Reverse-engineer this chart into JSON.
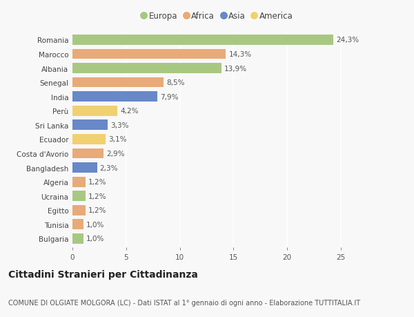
{
  "countries": [
    "Romania",
    "Marocco",
    "Albania",
    "Senegal",
    "India",
    "Perù",
    "Sri Lanka",
    "Ecuador",
    "Costa d'Avorio",
    "Bangladesh",
    "Algeria",
    "Ucraina",
    "Egitto",
    "Tunisia",
    "Bulgaria"
  ],
  "values": [
    24.3,
    14.3,
    13.9,
    8.5,
    7.9,
    4.2,
    3.3,
    3.1,
    2.9,
    2.3,
    1.2,
    1.2,
    1.2,
    1.0,
    1.0
  ],
  "labels": [
    "24,3%",
    "14,3%",
    "13,9%",
    "8,5%",
    "7,9%",
    "4,2%",
    "3,3%",
    "3,1%",
    "2,9%",
    "2,3%",
    "1,2%",
    "1,2%",
    "1,2%",
    "1,0%",
    "1,0%"
  ],
  "continents": [
    "Europa",
    "Africa",
    "Europa",
    "Africa",
    "Asia",
    "America",
    "Asia",
    "America",
    "Africa",
    "Asia",
    "Africa",
    "Europa",
    "Africa",
    "Africa",
    "Europa"
  ],
  "continent_colors": {
    "Europa": "#a8c882",
    "Africa": "#e8aa78",
    "Asia": "#6888c8",
    "America": "#f0d070"
  },
  "legend_order": [
    "Europa",
    "Africa",
    "Asia",
    "America"
  ],
  "title": "Cittadini Stranieri per Cittadinanza",
  "subtitle": "COMUNE DI OLGIATE MOLGORA (LC) - Dati ISTAT al 1° gennaio di ogni anno - Elaborazione TUTTITALIA.IT",
  "xlim": [
    0,
    27
  ],
  "xticks": [
    0,
    5,
    10,
    15,
    20,
    25
  ],
  "background_color": "#f8f8f8",
  "grid_color": "#ffffff",
  "bar_height": 0.72,
  "label_fontsize": 7.5,
  "title_fontsize": 10,
  "subtitle_fontsize": 7,
  "tick_fontsize": 7.5,
  "legend_fontsize": 8.5
}
